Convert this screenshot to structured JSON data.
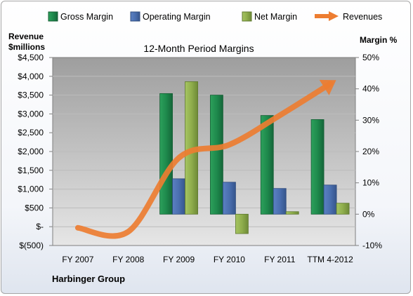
{
  "chart_data": {
    "type": "bar",
    "title": "12-Month Period Margins",
    "company": "Harbinger Group",
    "left_axis": {
      "label_line1": "Revenue",
      "label_line2": "$millions",
      "ylim": [
        -500,
        4500
      ],
      "ticks": [
        "$(500)",
        "$-",
        "$500",
        "$1,000",
        "$1,500",
        "$2,000",
        "$2,500",
        "$3,000",
        "$3,500",
        "$4,000",
        "$4,500"
      ]
    },
    "right_axis": {
      "label": "Margin %",
      "ylim": [
        -10,
        50
      ],
      "ticks": [
        "-10%",
        "0%",
        "10%",
        "20%",
        "30%",
        "40%",
        "50%"
      ]
    },
    "categories": [
      "FY 2007",
      "FY 2008",
      "FY 2009",
      "FY 2010",
      "FY 2011",
      "TTM 4-2012"
    ],
    "series": [
      {
        "name": "Gross Margin",
        "axis": "right",
        "kind": "bar",
        "color": "#1e8a4c",
        "values": [
          null,
          null,
          38.5,
          38.0,
          31.5,
          30.2
        ]
      },
      {
        "name": "Operating Margin",
        "axis": "right",
        "kind": "bar",
        "color": "#4a6fb0",
        "values": [
          null,
          null,
          11.3,
          10.2,
          8.2,
          9.3
        ]
      },
      {
        "name": "Net Margin",
        "axis": "right",
        "kind": "bar",
        "color": "#8fae4c",
        "values": [
          null,
          null,
          42.3,
          -6.2,
          0.8,
          3.5
        ]
      },
      {
        "name": "Revenues",
        "axis": "left",
        "kind": "line",
        "color": "#ed7d31",
        "values": [
          -30,
          -130,
          1830,
          2180,
          2960,
          3800
        ]
      }
    ],
    "grid": true,
    "legend": "top"
  }
}
